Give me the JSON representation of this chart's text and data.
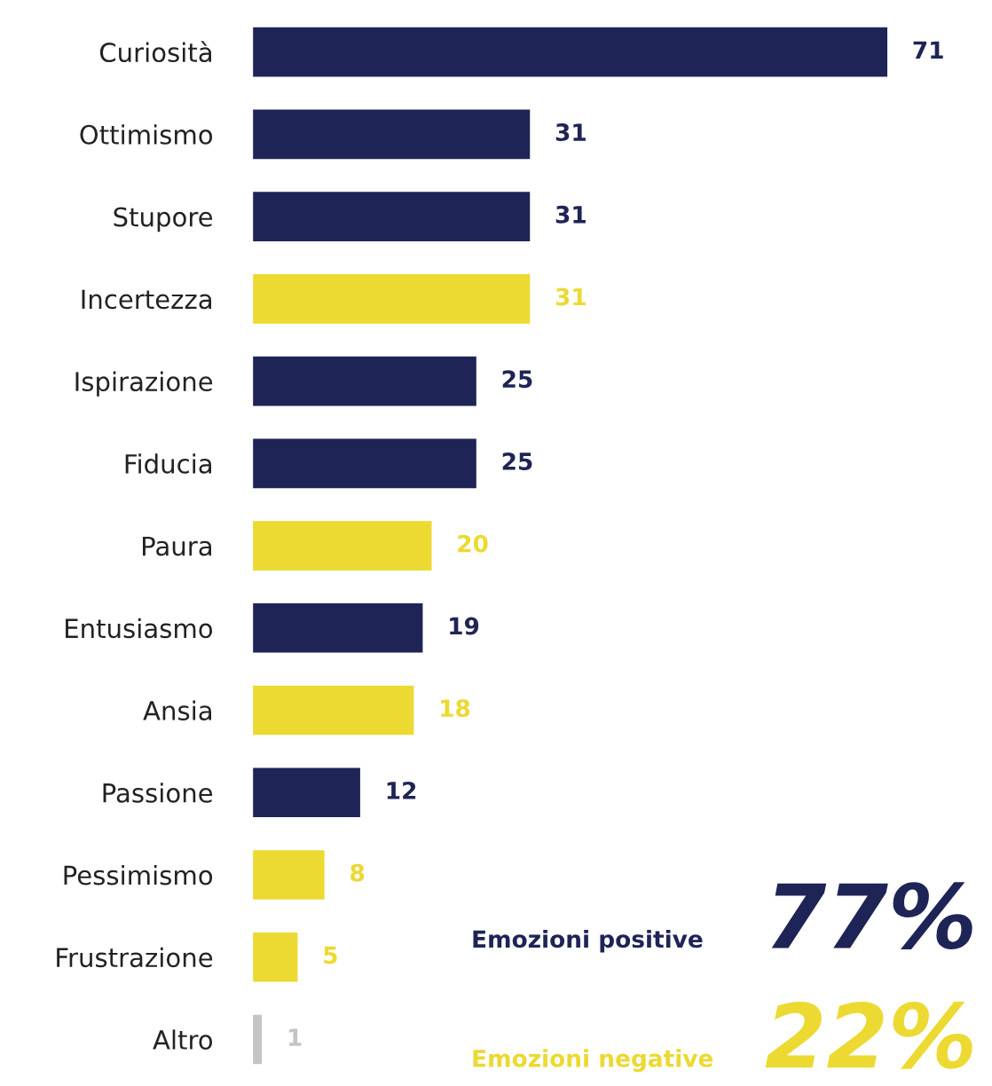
{
  "chart_data": {
    "type": "bar",
    "orientation": "horizontal",
    "categories": [
      "Curiosità",
      "Ottimismo",
      "Stupore",
      "Incertezza",
      "Ispirazione",
      "Fiducia",
      "Paura",
      "Entusiasmo",
      "Ansia",
      "Passione",
      "Pessimismo",
      "Frustrazione",
      "Altro"
    ],
    "values": [
      71,
      31,
      31,
      31,
      25,
      25,
      20,
      19,
      18,
      12,
      8,
      5,
      1
    ],
    "colors": [
      "#1f2456",
      "#1f2456",
      "#1f2456",
      "#ecd932",
      "#1f2456",
      "#1f2456",
      "#ecd932",
      "#1f2456",
      "#ecd932",
      "#1f2456",
      "#ecd932",
      "#ecd932",
      "#c4c4c4"
    ],
    "data_labels": true,
    "annotations": [
      "Emozioni positive",
      "77%",
      "Emozioni negative",
      "22%"
    ]
  }
}
